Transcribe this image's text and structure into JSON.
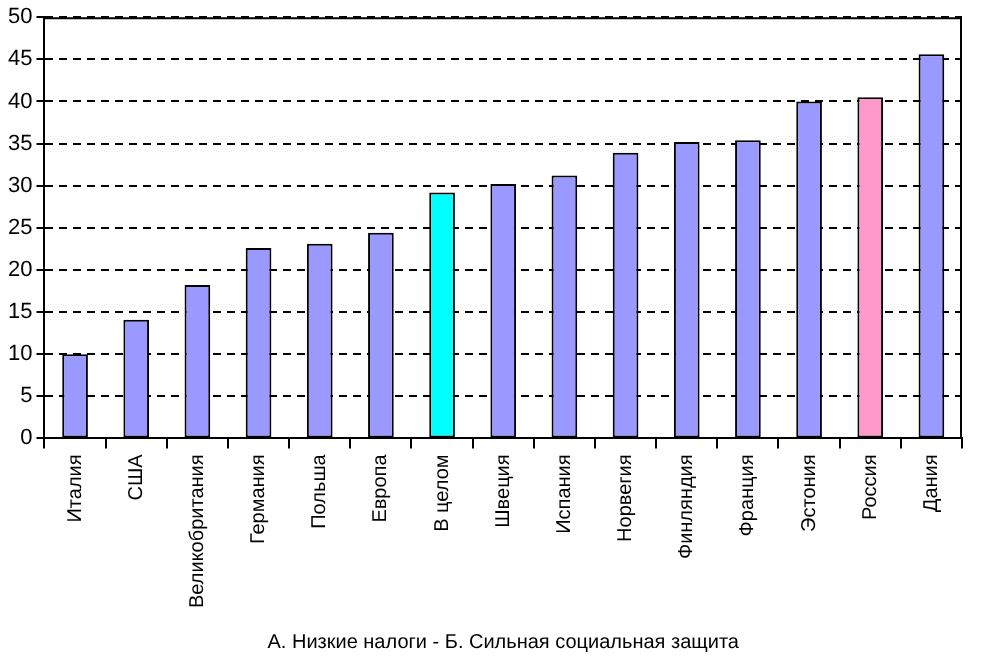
{
  "chart_data": {
    "type": "bar",
    "xlabel": "А. Низкие налоги - Б. Сильная социальная защита",
    "categories": [
      "Италия",
      "США",
      "Великобритания",
      "Германия",
      "Польша",
      "Европа",
      "В целом",
      "Швеция",
      "Испания",
      "Норвегия",
      "Финляндия",
      "Франция",
      "Эстония",
      "Россия",
      "Дания"
    ],
    "values": [
      10,
      14.1,
      18.2,
      22.6,
      23.1,
      24.4,
      29.2,
      30.2,
      31.2,
      33.9,
      35.2,
      35.4,
      40,
      40.5,
      45.6
    ],
    "colors": [
      "#9999ff",
      "#9999ff",
      "#9999ff",
      "#9999ff",
      "#9999ff",
      "#9999ff",
      "#00ffff",
      "#9999ff",
      "#9999ff",
      "#9999ff",
      "#9999ff",
      "#9999ff",
      "#9999ff",
      "#ff99cc",
      "#9999ff"
    ],
    "ylim": [
      0,
      50
    ],
    "yticks": [
      0,
      5,
      10,
      15,
      20,
      25,
      30,
      35,
      40,
      45,
      50
    ],
    "grid": "y",
    "legend": false
  }
}
